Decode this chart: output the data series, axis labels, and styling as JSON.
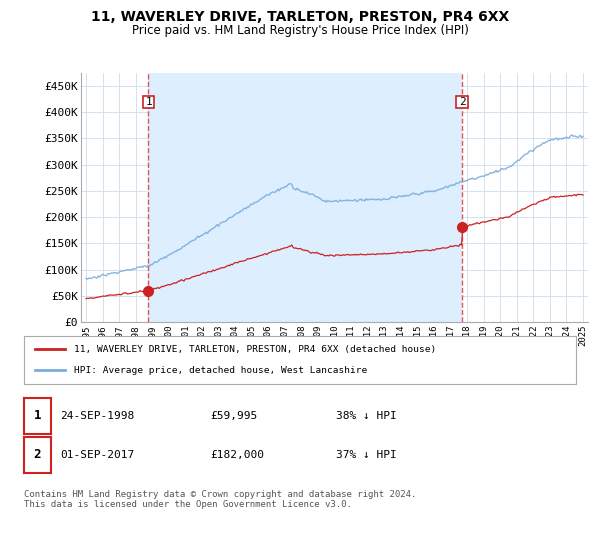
{
  "title": "11, WAVERLEY DRIVE, TARLETON, PRESTON, PR4 6XX",
  "subtitle": "Price paid vs. HM Land Registry's House Price Index (HPI)",
  "hpi_label": "HPI: Average price, detached house, West Lancashire",
  "price_label": "11, WAVERLEY DRIVE, TARLETON, PRESTON, PR4 6XX (detached house)",
  "sale1_date": "24-SEP-1998",
  "sale1_price": 59995,
  "sale1_hpi_pct": "38% ↓ HPI",
  "sale2_date": "01-SEP-2017",
  "sale2_price": 182000,
  "sale2_hpi_pct": "37% ↓ HPI",
  "sale1_year": 1998.75,
  "sale2_year": 2017.67,
  "ylim": [
    0,
    475000
  ],
  "xlim": [
    1994.7,
    2025.3
  ],
  "yticks": [
    0,
    50000,
    100000,
    150000,
    200000,
    250000,
    300000,
    350000,
    400000,
    450000
  ],
  "ytick_labels": [
    "£0",
    "£50K",
    "£100K",
    "£150K",
    "£200K",
    "£250K",
    "£300K",
    "£350K",
    "£400K",
    "£450K"
  ],
  "price_color": "#cc2222",
  "hpi_color": "#7aaddb",
  "vline_color": "#dd4444",
  "shade_color": "#ddeeff",
  "footer": "Contains HM Land Registry data © Crown copyright and database right 2024.\nThis data is licensed under the Open Government Licence v3.0.",
  "bg_color": "#ffffff",
  "grid_color": "#ccddee"
}
